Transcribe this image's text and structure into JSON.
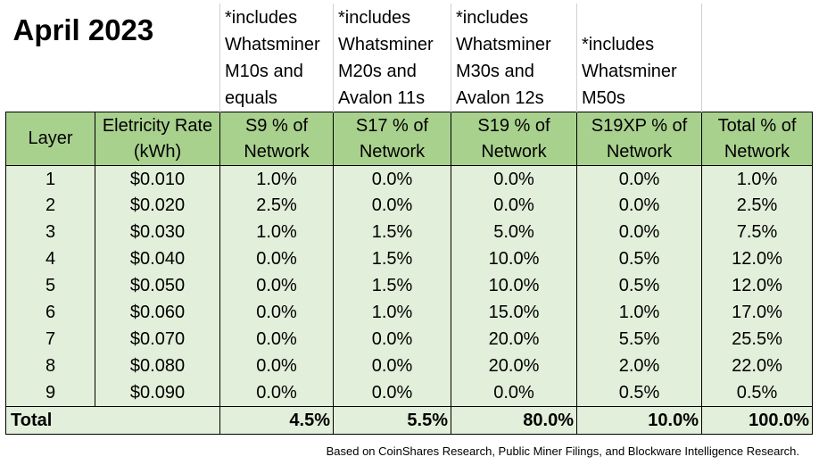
{
  "title": "April 2023",
  "notes": [
    "",
    "*includes Whatsminer M10s and equals",
    "*includes Whatsminer M20s and Avalon 11s",
    "*includes Whatsminer M30s and Avalon 12s",
    "*includes Whatsminer M50s",
    ""
  ],
  "headers": [
    [
      "Layer"
    ],
    [
      "Eletricity Rate",
      "(kWh)"
    ],
    [
      "S9 % of",
      "Network"
    ],
    [
      "S17 % of",
      "Network"
    ],
    [
      "S19 % of",
      "Network"
    ],
    [
      "S19XP % of",
      "Network"
    ],
    [
      "Total % of",
      "Network"
    ]
  ],
  "rows": [
    [
      "1",
      "$0.010",
      "1.0%",
      "0.0%",
      "0.0%",
      "0.0%",
      "1.0%"
    ],
    [
      "2",
      "$0.020",
      "2.5%",
      "0.0%",
      "0.0%",
      "0.0%",
      "2.5%"
    ],
    [
      "3",
      "$0.030",
      "1.0%",
      "1.5%",
      "5.0%",
      "0.0%",
      "7.5%"
    ],
    [
      "4",
      "$0.040",
      "0.0%",
      "1.5%",
      "10.0%",
      "0.5%",
      "12.0%"
    ],
    [
      "5",
      "$0.050",
      "0.0%",
      "1.5%",
      "10.0%",
      "0.5%",
      "12.0%"
    ],
    [
      "6",
      "$0.060",
      "0.0%",
      "1.0%",
      "15.0%",
      "1.0%",
      "17.0%"
    ],
    [
      "7",
      "$0.070",
      "0.0%",
      "0.0%",
      "20.0%",
      "5.5%",
      "25.5%"
    ],
    [
      "8",
      "$0.080",
      "0.0%",
      "0.0%",
      "20.0%",
      "2.0%",
      "22.0%"
    ],
    [
      "9",
      "$0.090",
      "0.0%",
      "0.0%",
      "0.0%",
      "0.5%",
      "0.5%"
    ]
  ],
  "total": {
    "label": "Total",
    "s9": "4.5%",
    "s17": "5.5%",
    "s19": "80.0%",
    "s19xp": "10.0%",
    "total": "100.0%"
  },
  "footnote": "Based on CoinShares Research, Public Miner Filings, and Blockware Intelligence Research."
}
